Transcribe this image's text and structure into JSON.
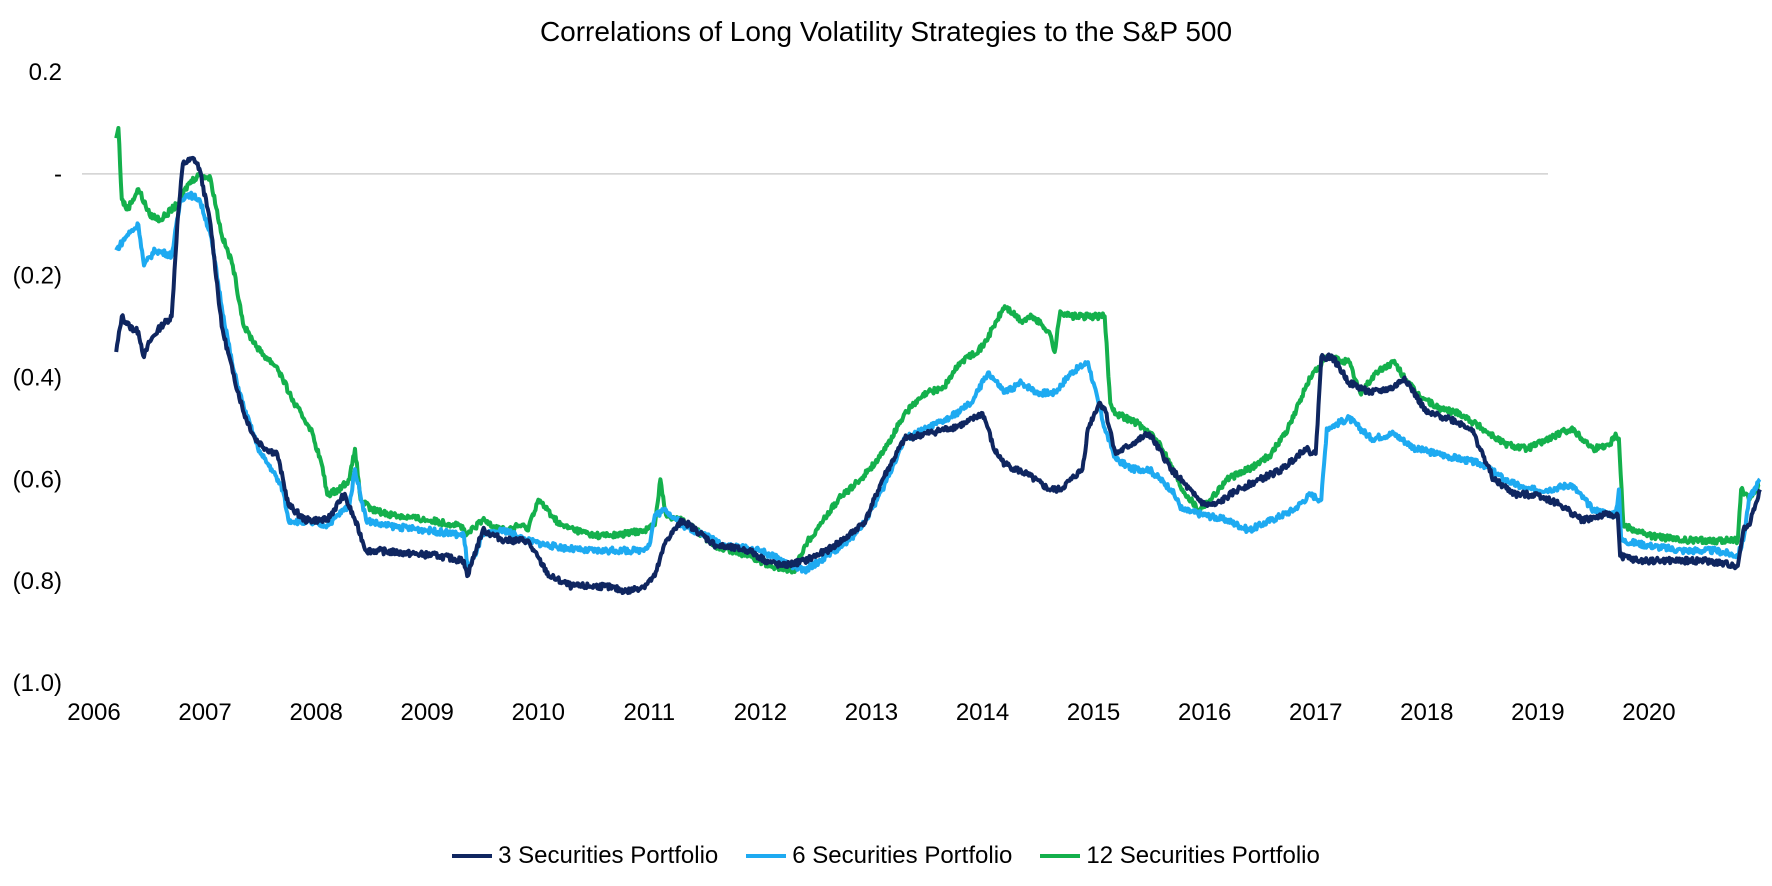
{
  "chart_data": {
    "type": "line",
    "title": "Correlations of Long Volatility Strategies to the S&P 500",
    "xlabel": "",
    "ylabel": "",
    "xlim": [
      2006,
      2021
    ],
    "ylim": [
      -1.0,
      0.2
    ],
    "x_ticks": [
      2006,
      2007,
      2008,
      2009,
      2010,
      2011,
      2012,
      2013,
      2014,
      2015,
      2016,
      2017,
      2018,
      2019,
      2020
    ],
    "x_tick_labels": [
      "2006",
      "2007",
      "2008",
      "2009",
      "2010",
      "2011",
      "2012",
      "2013",
      "2014",
      "2015",
      "2016",
      "2017",
      "2018",
      "2019",
      "2020"
    ],
    "y_ticks": [
      0.2,
      0.0,
      -0.2,
      -0.4,
      -0.6,
      -0.8,
      -1.0
    ],
    "y_tick_labels": [
      "0.2",
      "-",
      "(0.2)",
      "(0.4)",
      "(0.6)",
      "(0.8)",
      "(1.0)"
    ],
    "zero_line": true,
    "grid": false,
    "legend_position": "bottom",
    "series": [
      {
        "name": "3 Securities Portfolio",
        "color": "#0f2660",
        "x": [
          2006.2,
          2006.25,
          2006.32,
          2006.4,
          2006.45,
          2006.5,
          2006.6,
          2006.7,
          2006.75,
          2006.8,
          2006.9,
          2006.95,
          2007.05,
          2007.15,
          2007.25,
          2007.35,
          2007.45,
          2007.55,
          2007.65,
          2007.75,
          2007.9,
          2008.1,
          2008.25,
          2008.35,
          2008.45,
          2008.55,
          2008.8,
          2009.1,
          2009.33,
          2009.36,
          2009.5,
          2009.7,
          2009.9,
          2010.1,
          2010.3,
          2010.6,
          2010.8,
          2010.95,
          2011.05,
          2011.15,
          2011.3,
          2011.6,
          2011.9,
          2012.05,
          2012.2,
          2012.4,
          2012.6,
          2012.8,
          2012.95,
          2013.1,
          2013.3,
          2013.5,
          2013.7,
          2013.85,
          2014.0,
          2014.05,
          2014.1,
          2014.2,
          2014.4,
          2014.6,
          2014.7,
          2014.8,
          2014.9,
          2014.95,
          2015.05,
          2015.1,
          2015.2,
          2015.35,
          2015.5,
          2015.7,
          2015.9,
          2016.0,
          2016.1,
          2016.3,
          2016.5,
          2016.7,
          2016.9,
          2017.0,
          2017.05,
          2017.15,
          2017.3,
          2017.5,
          2017.7,
          2017.8,
          2018.0,
          2018.2,
          2018.4,
          2018.6,
          2018.8,
          2019.0,
          2019.2,
          2019.4,
          2019.6,
          2019.72,
          2019.74,
          2019.9,
          2020.2,
          2020.5,
          2020.8,
          2020.85,
          2020.9,
          2021.0
        ],
        "values": [
          -0.35,
          -0.28,
          -0.3,
          -0.31,
          -0.36,
          -0.33,
          -0.3,
          -0.28,
          -0.1,
          0.02,
          0.03,
          0.01,
          -0.1,
          -0.3,
          -0.39,
          -0.47,
          -0.52,
          -0.54,
          -0.55,
          -0.65,
          -0.68,
          -0.68,
          -0.63,
          -0.68,
          -0.74,
          -0.74,
          -0.745,
          -0.75,
          -0.76,
          -0.79,
          -0.7,
          -0.72,
          -0.72,
          -0.79,
          -0.81,
          -0.81,
          -0.82,
          -0.81,
          -0.79,
          -0.72,
          -0.68,
          -0.73,
          -0.74,
          -0.76,
          -0.77,
          -0.76,
          -0.74,
          -0.71,
          -0.68,
          -0.6,
          -0.52,
          -0.51,
          -0.5,
          -0.49,
          -0.47,
          -0.5,
          -0.54,
          -0.57,
          -0.59,
          -0.62,
          -0.62,
          -0.6,
          -0.58,
          -0.5,
          -0.45,
          -0.46,
          -0.55,
          -0.53,
          -0.51,
          -0.58,
          -0.63,
          -0.65,
          -0.65,
          -0.62,
          -0.6,
          -0.58,
          -0.54,
          -0.55,
          -0.36,
          -0.36,
          -0.41,
          -0.43,
          -0.42,
          -0.4,
          -0.47,
          -0.48,
          -0.5,
          -0.6,
          -0.63,
          -0.63,
          -0.65,
          -0.68,
          -0.67,
          -0.67,
          -0.75,
          -0.76,
          -0.76,
          -0.76,
          -0.77,
          -0.7,
          -0.69,
          -0.62
        ]
      },
      {
        "name": "6 Securities Portfolio",
        "color": "#1eaaf1",
        "x": [
          2006.2,
          2006.3,
          2006.4,
          2006.45,
          2006.55,
          2006.7,
          2006.78,
          2006.85,
          2006.95,
          2007.05,
          2007.15,
          2007.25,
          2007.35,
          2007.5,
          2007.6,
          2007.7,
          2007.75,
          2008.1,
          2008.3,
          2008.35,
          2008.45,
          2008.6,
          2009.0,
          2009.33,
          2009.37,
          2009.5,
          2009.7,
          2009.9,
          2010.1,
          2010.4,
          2010.7,
          2010.9,
          2011.0,
          2011.05,
          2011.15,
          2011.3,
          2011.7,
          2012.0,
          2012.2,
          2012.4,
          2012.6,
          2012.8,
          2012.95,
          2013.1,
          2013.3,
          2013.5,
          2013.7,
          2013.9,
          2014.05,
          2014.2,
          2014.35,
          2014.5,
          2014.65,
          2014.8,
          2014.95,
          2015.1,
          2015.2,
          2015.35,
          2015.5,
          2015.7,
          2015.8,
          2016.0,
          2016.2,
          2016.4,
          2016.6,
          2016.8,
          2016.95,
          2017.05,
          2017.1,
          2017.3,
          2017.5,
          2017.7,
          2017.9,
          2018.1,
          2018.3,
          2018.5,
          2018.7,
          2018.9,
          2019.1,
          2019.3,
          2019.5,
          2019.7,
          2019.73,
          2019.75,
          2020.0,
          2020.3,
          2020.6,
          2020.8,
          2020.85,
          2020.9,
          2021.0
        ],
        "values": [
          -0.15,
          -0.12,
          -0.1,
          -0.18,
          -0.15,
          -0.16,
          -0.05,
          -0.04,
          -0.05,
          -0.12,
          -0.26,
          -0.38,
          -0.46,
          -0.55,
          -0.58,
          -0.62,
          -0.68,
          -0.69,
          -0.65,
          -0.58,
          -0.68,
          -0.69,
          -0.7,
          -0.71,
          -0.78,
          -0.71,
          -0.7,
          -0.72,
          -0.73,
          -0.74,
          -0.74,
          -0.74,
          -0.73,
          -0.67,
          -0.66,
          -0.69,
          -0.73,
          -0.74,
          -0.76,
          -0.78,
          -0.75,
          -0.72,
          -0.68,
          -0.62,
          -0.52,
          -0.5,
          -0.48,
          -0.45,
          -0.39,
          -0.43,
          -0.41,
          -0.43,
          -0.43,
          -0.39,
          -0.37,
          -0.5,
          -0.56,
          -0.58,
          -0.58,
          -0.62,
          -0.66,
          -0.67,
          -0.68,
          -0.7,
          -0.68,
          -0.66,
          -0.63,
          -0.64,
          -0.5,
          -0.48,
          -0.52,
          -0.51,
          -0.54,
          -0.55,
          -0.56,
          -0.57,
          -0.6,
          -0.62,
          -0.62,
          -0.61,
          -0.66,
          -0.67,
          -0.62,
          -0.72,
          -0.73,
          -0.74,
          -0.74,
          -0.75,
          -0.72,
          -0.64,
          -0.6
        ]
      },
      {
        "name": "12 Securities Portfolio",
        "color": "#14b04c",
        "x": [
          2006.2,
          2006.22,
          2006.25,
          2006.3,
          2006.4,
          2006.5,
          2006.6,
          2006.75,
          2006.85,
          2006.95,
          2007.05,
          2007.15,
          2007.25,
          2007.35,
          2007.5,
          2007.65,
          2007.8,
          2007.95,
          2008.05,
          2008.1,
          2008.2,
          2008.3,
          2008.35,
          2008.4,
          2008.5,
          2008.7,
          2009.0,
          2009.3,
          2009.35,
          2009.5,
          2009.7,
          2009.85,
          2009.9,
          2010.0,
          2010.2,
          2010.5,
          2010.7,
          2010.95,
          2011.05,
          2011.1,
          2011.15,
          2011.3,
          2011.6,
          2011.9,
          2012.1,
          2012.3,
          2012.4,
          2012.5,
          2012.7,
          2012.9,
          2013.1,
          2013.3,
          2013.5,
          2013.65,
          2013.8,
          2014.0,
          2014.1,
          2014.2,
          2014.35,
          2014.45,
          2014.6,
          2014.65,
          2014.7,
          2014.8,
          2015.1,
          2015.15,
          2015.2,
          2015.4,
          2015.6,
          2015.8,
          2015.95,
          2016.05,
          2016.2,
          2016.4,
          2016.6,
          2016.75,
          2016.85,
          2016.95,
          2017.1,
          2017.3,
          2017.4,
          2017.55,
          2017.7,
          2017.9,
          2018.1,
          2018.3,
          2018.5,
          2018.7,
          2018.9,
          2019.1,
          2019.3,
          2019.5,
          2019.65,
          2019.7,
          2019.73,
          2019.77,
          2020.0,
          2020.3,
          2020.6,
          2020.8,
          2020.83,
          2020.9,
          2021.0
        ],
        "values": [
          0.07,
          0.09,
          -0.05,
          -0.07,
          -0.03,
          -0.08,
          -0.09,
          -0.06,
          -0.02,
          0.0,
          -0.01,
          -0.12,
          -0.18,
          -0.3,
          -0.35,
          -0.38,
          -0.45,
          -0.5,
          -0.57,
          -0.63,
          -0.62,
          -0.6,
          -0.54,
          -0.64,
          -0.66,
          -0.67,
          -0.68,
          -0.69,
          -0.71,
          -0.68,
          -0.7,
          -0.69,
          -0.7,
          -0.64,
          -0.69,
          -0.71,
          -0.71,
          -0.7,
          -0.69,
          -0.6,
          -0.67,
          -0.68,
          -0.73,
          -0.75,
          -0.77,
          -0.78,
          -0.73,
          -0.7,
          -0.64,
          -0.6,
          -0.55,
          -0.47,
          -0.43,
          -0.42,
          -0.37,
          -0.34,
          -0.3,
          -0.26,
          -0.29,
          -0.28,
          -0.31,
          -0.35,
          -0.27,
          -0.28,
          -0.28,
          -0.45,
          -0.47,
          -0.49,
          -0.53,
          -0.62,
          -0.66,
          -0.64,
          -0.6,
          -0.58,
          -0.55,
          -0.5,
          -0.45,
          -0.4,
          -0.36,
          -0.37,
          -0.43,
          -0.39,
          -0.37,
          -0.43,
          -0.46,
          -0.47,
          -0.5,
          -0.53,
          -0.54,
          -0.52,
          -0.5,
          -0.54,
          -0.53,
          -0.51,
          -0.52,
          -0.69,
          -0.71,
          -0.72,
          -0.72,
          -0.72,
          -0.62,
          -0.64,
          -0.61
        ]
      }
    ]
  }
}
